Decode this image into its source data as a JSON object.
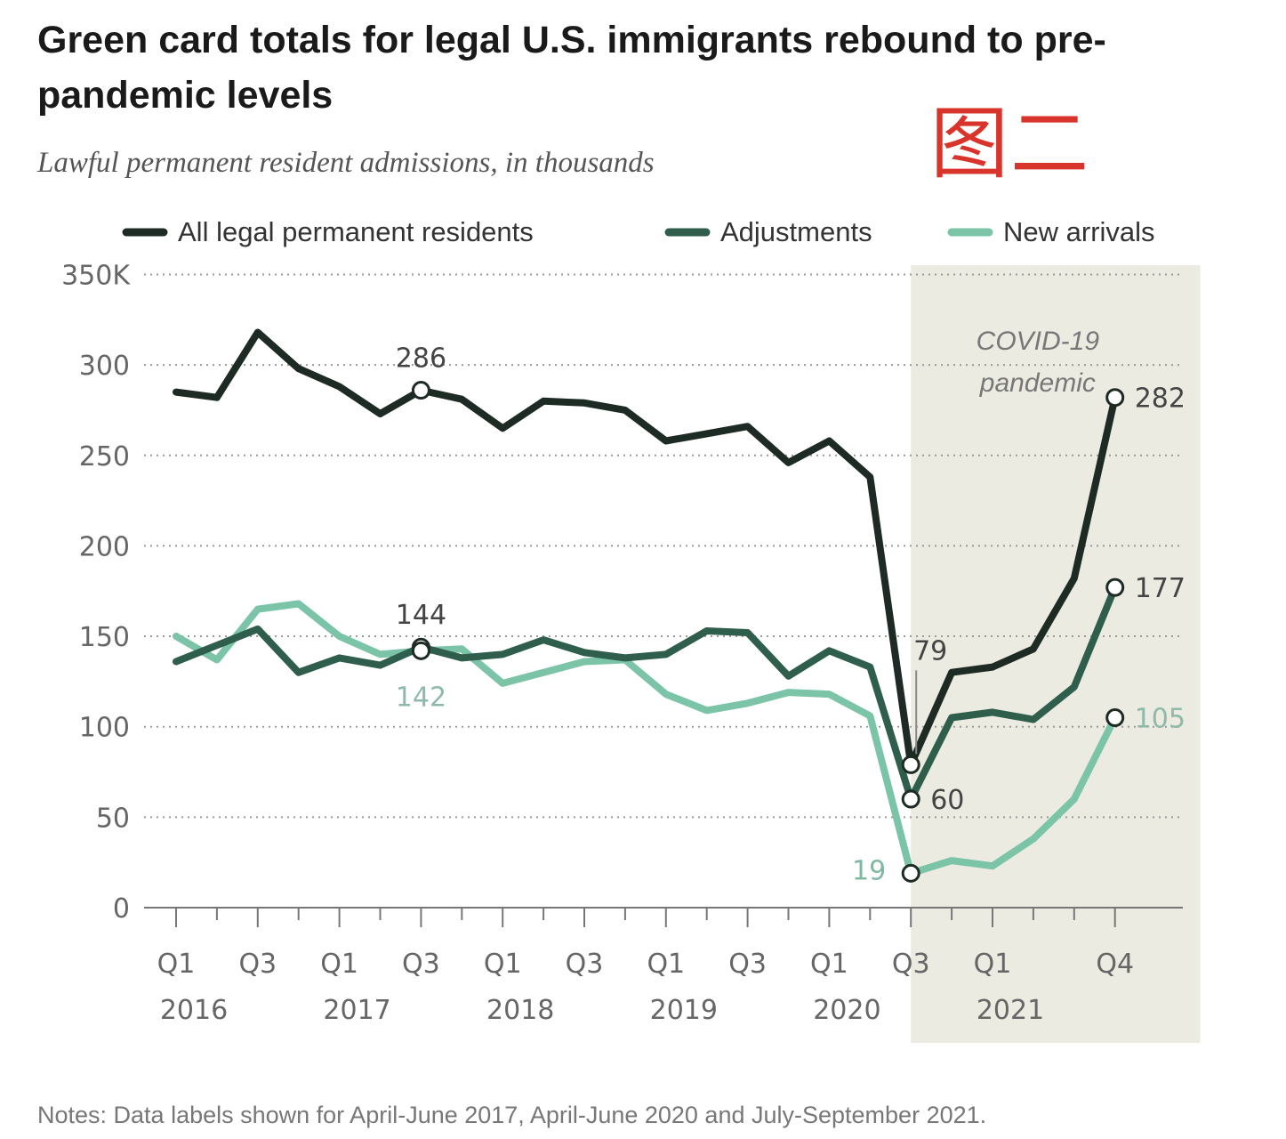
{
  "title": "Green card totals for legal U.S. immigrants rebound to pre-pandemic levels",
  "subtitle": "Lawful permanent resident admissions, in thousands",
  "stamp_text": "图二",
  "notes": "Notes: Data labels shown for April-June 2017, April-June 2020 and July-September 2021.",
  "chart_data": {
    "type": "line",
    "title": "Green card totals for legal U.S. immigrants rebound to pre-pandemic levels",
    "subtitle": "Lawful permanent resident admissions, in thousands",
    "xlabel": "",
    "ylabel": "",
    "ylim": [
      0,
      350
    ],
    "yticks": [
      {
        "value": 0,
        "label": "0"
      },
      {
        "value": 50,
        "label": "50"
      },
      {
        "value": 100,
        "label": "100"
      },
      {
        "value": 150,
        "label": "150"
      },
      {
        "value": 200,
        "label": "200"
      },
      {
        "value": 250,
        "label": "250"
      },
      {
        "value": 300,
        "label": "300"
      },
      {
        "value": 350,
        "label": "350K"
      }
    ],
    "grid": true,
    "legend_position": "top",
    "x": [
      "2016 Q1",
      "2016 Q2",
      "2016 Q3",
      "2016 Q4",
      "2017 Q1",
      "2017 Q2",
      "2017 Q3",
      "2017 Q4",
      "2018 Q1",
      "2018 Q2",
      "2018 Q3",
      "2018 Q4",
      "2019 Q1",
      "2019 Q2",
      "2019 Q3",
      "2019 Q4",
      "2020 Q1",
      "2020 Q2",
      "2020 Q3",
      "2020 Q4",
      "2021 Q1",
      "2021 Q2",
      "2021 Q3",
      "2021 Q4",
      "2022 Q1",
      "2022 Q2"
    ],
    "x_tick_labels": [
      {
        "index": 0,
        "quarter": "Q1",
        "year": "2016"
      },
      {
        "index": 2,
        "quarter": "Q3",
        "year": ""
      },
      {
        "index": 4,
        "quarter": "Q1",
        "year": "2017"
      },
      {
        "index": 6,
        "quarter": "Q3",
        "year": ""
      },
      {
        "index": 8,
        "quarter": "Q1",
        "year": "2018"
      },
      {
        "index": 10,
        "quarter": "Q3",
        "year": ""
      },
      {
        "index": 12,
        "quarter": "Q1",
        "year": "2019"
      },
      {
        "index": 14,
        "quarter": "Q3",
        "year": ""
      },
      {
        "index": 16,
        "quarter": "Q1",
        "year": "2020"
      },
      {
        "index": 18,
        "quarter": "Q3",
        "year": ""
      },
      {
        "index": 20,
        "quarter": "Q1",
        "year": "2021"
      },
      {
        "index": 23,
        "quarter": "Q4",
        "year": ""
      }
    ],
    "series": [
      {
        "name": "All legal permanent residents",
        "color": "#1d2b24",
        "values": [
          285,
          282,
          318,
          298,
          288,
          273,
          286,
          281,
          265,
          280,
          279,
          275,
          258,
          262,
          266,
          246,
          258,
          238,
          79,
          130,
          133,
          143,
          182,
          282,
          null,
          null
        ]
      },
      {
        "name": "Adjustments",
        "color": "#2f5e4c",
        "values": [
          136,
          145,
          154,
          130,
          138,
          134,
          144,
          138,
          140,
          148,
          141,
          138,
          140,
          153,
          152,
          128,
          142,
          133,
          60,
          105,
          108,
          104,
          122,
          177,
          null,
          null
        ]
      },
      {
        "name": "New arrivals",
        "color": "#7cc4a8",
        "values": [
          150,
          137,
          165,
          168,
          150,
          140,
          142,
          143,
          124,
          130,
          136,
          137,
          118,
          109,
          113,
          119,
          118,
          106,
          19,
          26,
          23,
          38,
          60,
          105,
          null,
          null
        ]
      }
    ],
    "annotations": {
      "shaded_region": {
        "label_line1": "COVID-19",
        "label_line2": "pandemic",
        "start_index": 18,
        "end_index": 25
      },
      "data_labels": [
        {
          "series": 0,
          "index": 6,
          "text": "286",
          "position": "above",
          "color": "#444"
        },
        {
          "series": 1,
          "index": 6,
          "text": "144",
          "position": "above",
          "color": "#444"
        },
        {
          "series": 2,
          "index": 6,
          "text": "142",
          "position": "below",
          "color": "#8fb9a8"
        },
        {
          "series": 0,
          "index": 18,
          "text": "79",
          "position": "above",
          "color": "#444"
        },
        {
          "series": 1,
          "index": 18,
          "text": "60",
          "position": "right",
          "color": "#444"
        },
        {
          "series": 2,
          "index": 18,
          "text": "19",
          "position": "left",
          "color": "#7fb9a2"
        },
        {
          "series": 0,
          "index": 23,
          "text": "282",
          "position": "right",
          "color": "#444"
        },
        {
          "series": 1,
          "index": 23,
          "text": "177",
          "position": "right",
          "color": "#444"
        },
        {
          "series": 2,
          "index": 23,
          "text": "105",
          "position": "right",
          "color": "#8fb9a8"
        }
      ]
    }
  }
}
